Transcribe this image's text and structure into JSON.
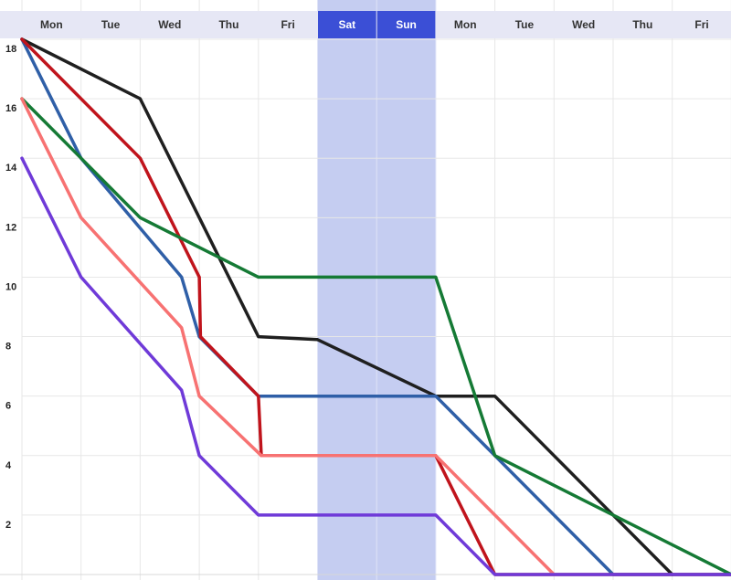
{
  "colors": {
    "header_bg": "#e6e7f5",
    "weekend_header_bg": "#3b4fd6",
    "weekend_band": "#c5cdf1",
    "grid": "#e7e7e7",
    "axis_text": "#222222"
  },
  "chart_data": {
    "type": "line",
    "categories": [
      "Mon",
      "Tue",
      "Wed",
      "Thu",
      "Fri",
      "Sat",
      "Sun",
      "Mon",
      "Tue",
      "Wed",
      "Thu",
      "Fri"
    ],
    "weekend_days": [
      5,
      6
    ],
    "ylim": [
      0,
      18
    ],
    "yticks": [
      2,
      4,
      6,
      8,
      10,
      12,
      14,
      16,
      18
    ],
    "grid": true,
    "series": [
      {
        "color": "#1f1f1f",
        "points": [
          [
            0,
            18
          ],
          [
            2,
            16
          ],
          [
            3,
            12
          ],
          [
            4,
            8
          ],
          [
            5,
            7.9
          ],
          [
            7,
            6
          ],
          [
            8,
            6
          ],
          [
            9,
            4
          ],
          [
            11,
            0
          ]
        ]
      },
      {
        "color": "#2f5fa7",
        "points": [
          [
            0,
            18
          ],
          [
            1,
            14
          ],
          [
            2.7,
            10
          ],
          [
            3,
            8
          ],
          [
            4,
            6
          ],
          [
            7,
            6
          ],
          [
            10,
            0
          ],
          [
            12,
            0
          ]
        ]
      },
      {
        "color": "#c0141c",
        "points": [
          [
            0,
            18
          ],
          [
            2,
            14
          ],
          [
            3,
            10
          ],
          [
            3.02,
            8
          ],
          [
            4,
            6
          ],
          [
            4.05,
            4
          ],
          [
            7,
            4
          ],
          [
            8,
            0
          ],
          [
            12,
            0
          ]
        ]
      },
      {
        "color": "#157a35",
        "points": [
          [
            0,
            16
          ],
          [
            1,
            14
          ],
          [
            2,
            12
          ],
          [
            4,
            10
          ],
          [
            7,
            10
          ],
          [
            8,
            4
          ],
          [
            12,
            0
          ]
        ]
      },
      {
        "color": "#f77272",
        "points": [
          [
            0,
            16
          ],
          [
            1,
            12
          ],
          [
            2.7,
            8.3
          ],
          [
            3,
            6
          ],
          [
            4.05,
            4
          ],
          [
            7,
            4
          ],
          [
            8,
            2
          ],
          [
            9,
            0
          ]
        ]
      },
      {
        "color": "#6f3ad8",
        "points": [
          [
            0,
            14
          ],
          [
            1,
            10
          ],
          [
            2.7,
            6.2
          ],
          [
            3,
            4
          ],
          [
            4,
            2
          ],
          [
            7,
            2
          ],
          [
            8,
            0
          ],
          [
            12,
            0
          ]
        ]
      }
    ]
  }
}
